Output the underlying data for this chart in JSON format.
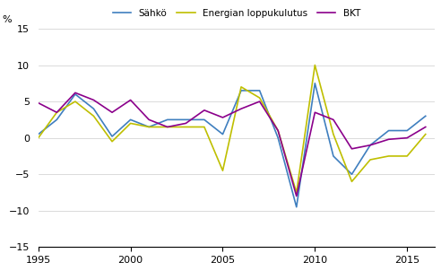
{
  "years": [
    1995,
    1996,
    1997,
    1998,
    1999,
    2000,
    2001,
    2002,
    2003,
    2004,
    2005,
    2006,
    2007,
    2008,
    2009,
    2010,
    2011,
    2012,
    2013,
    2014,
    2015,
    2016
  ],
  "sahko": [
    0.5,
    2.5,
    6.0,
    4.0,
    0.2,
    2.5,
    1.5,
    2.5,
    2.5,
    2.5,
    0.5,
    6.5,
    6.5,
    0.0,
    -9.5,
    7.5,
    -2.5,
    -5.0,
    -1.0,
    1.0,
    1.0,
    3.0
  ],
  "energia": [
    0.0,
    3.5,
    5.0,
    3.0,
    -0.5,
    2.0,
    1.5,
    1.5,
    1.5,
    1.5,
    -4.5,
    7.0,
    5.5,
    1.0,
    -7.5,
    10.0,
    0.5,
    -6.0,
    -3.0,
    -2.5,
    -2.5,
    0.5
  ],
  "bkt": [
    4.8,
    3.5,
    6.2,
    5.2,
    3.5,
    5.2,
    2.5,
    1.5,
    2.0,
    3.8,
    2.8,
    4.0,
    5.0,
    1.0,
    -8.0,
    3.5,
    2.5,
    -1.5,
    -1.0,
    -0.2,
    0.0,
    1.5
  ],
  "sahko_color": "#3F7FBF",
  "energia_color": "#BFBF00",
  "bkt_color": "#8B008B",
  "ylim": [
    -15,
    15
  ],
  "yticks": [
    -15,
    -10,
    -5,
    0,
    5,
    10,
    15
  ],
  "xticks": [
    1995,
    2000,
    2005,
    2010,
    2015
  ],
  "ylabel": "%",
  "legend_sahko": "Sähkö",
  "legend_energia": "Energian loppukulutus",
  "legend_bkt": "BKT",
  "line_width": 1.2
}
